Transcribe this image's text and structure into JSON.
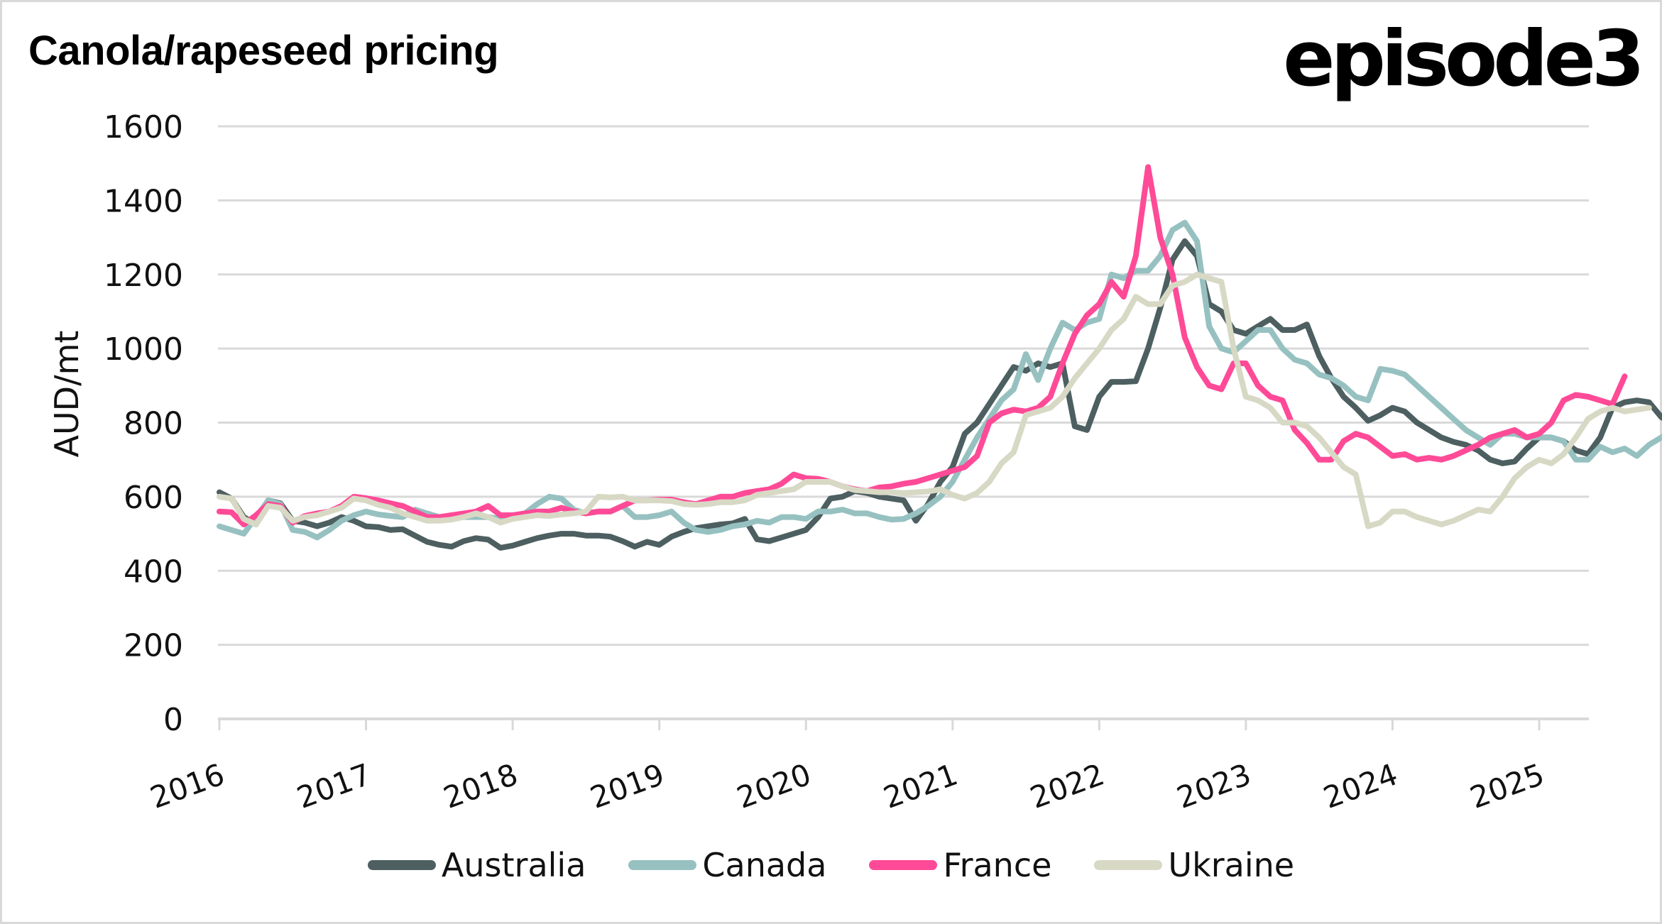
{
  "title": "Canola/rapeseed pricing",
  "brand": "episode3",
  "chart_data": {
    "type": "line",
    "title": "Canola/rapeseed pricing",
    "xlabel": "",
    "ylabel": "AUD/mt",
    "ylim": [
      0,
      1600
    ],
    "yticks": [
      0,
      200,
      400,
      600,
      800,
      1000,
      1200,
      1400,
      1600
    ],
    "ytick_labels": [
      "0",
      "200",
      "400",
      "600",
      "800",
      "1000",
      "1200",
      "1400",
      "1600"
    ],
    "xlim": [
      2016.0,
      2025.3
    ],
    "xticks": [
      2016,
      2017,
      2018,
      2019,
      2020,
      2021,
      2022,
      2023,
      2024,
      2025
    ],
    "xtick_labels": [
      "2016",
      "2017",
      "2018",
      "2019",
      "2020",
      "2021",
      "2022",
      "2023",
      "2024",
      "2025"
    ],
    "grid": true,
    "legend_position": "bottom",
    "x_start": 2016.0,
    "x_step_years": 0.08333,
    "series": [
      {
        "name": "Australia",
        "color": "#4d5f60",
        "values": [
          612,
          595,
          545,
          525,
          590,
          582,
          535,
          530,
          520,
          530,
          545,
          535,
          520,
          518,
          510,
          512,
          495,
          478,
          470,
          465,
          480,
          488,
          484,
          462,
          468,
          478,
          488,
          495,
          500,
          500,
          495,
          495,
          492,
          480,
          465,
          478,
          470,
          492,
          505,
          515,
          520,
          525,
          528,
          540,
          485,
          480,
          490,
          500,
          510,
          545,
          595,
          600,
          615,
          610,
          600,
          595,
          590,
          535,
          580,
          640,
          680,
          770,
          800,
          850,
          900,
          950,
          940,
          960,
          950,
          960,
          790,
          780,
          870,
          910,
          910,
          912,
          1000,
          1110,
          1240,
          1290,
          1250,
          1120,
          1100,
          1050,
          1040,
          1060,
          1080,
          1050,
          1050,
          1065,
          980,
          920,
          870,
          840,
          805,
          820,
          840,
          830,
          800,
          780,
          760,
          748,
          740,
          725,
          700,
          690,
          695,
          730,
          760,
          760,
          750,
          725,
          715,
          760,
          840,
          855,
          860,
          855,
          815,
          795,
          780
        ]
      },
      {
        "name": "Canada",
        "color": "#97c1c1",
        "values": [
          520,
          510,
          500,
          545,
          590,
          580,
          510,
          505,
          490,
          510,
          535,
          550,
          560,
          552,
          548,
          545,
          565,
          555,
          545,
          540,
          545,
          545,
          545,
          540,
          545,
          555,
          580,
          600,
          595,
          565,
          555,
          560,
          560,
          575,
          545,
          545,
          550,
          560,
          530,
          510,
          505,
          510,
          520,
          525,
          535,
          530,
          545,
          545,
          540,
          560,
          560,
          565,
          555,
          555,
          545,
          538,
          540,
          555,
          575,
          600,
          640,
          700,
          760,
          810,
          860,
          890,
          985,
          915,
          1000,
          1070,
          1050,
          1070,
          1080,
          1200,
          1190,
          1210,
          1210,
          1250,
          1320,
          1340,
          1290,
          1060,
          1000,
          990,
          1020,
          1050,
          1050,
          1000,
          970,
          960,
          930,
          920,
          900,
          870,
          860,
          945,
          940,
          930,
          900,
          870,
          840,
          810,
          780,
          760,
          740,
          770,
          770,
          760,
          760,
          760,
          750,
          700,
          700,
          735,
          720,
          730,
          710,
          740,
          760,
          780,
          725,
          810
        ]
      },
      {
        "name": "France",
        "color": "#ff4a97",
        "values": [
          560,
          558,
          525,
          550,
          580,
          575,
          530,
          548,
          555,
          560,
          575,
          600,
          596,
          590,
          582,
          575,
          560,
          545,
          545,
          550,
          555,
          560,
          575,
          550,
          550,
          555,
          560,
          560,
          570,
          560,
          555,
          560,
          560,
          575,
          590,
          590,
          592,
          592,
          585,
          580,
          590,
          600,
          600,
          610,
          615,
          620,
          635,
          660,
          650,
          648,
          640,
          628,
          620,
          615,
          625,
          628,
          635,
          640,
          650,
          660,
          670,
          680,
          710,
          800,
          825,
          835,
          830,
          840,
          870,
          960,
          1040,
          1090,
          1120,
          1180,
          1140,
          1250,
          1490,
          1300,
          1200,
          1030,
          950,
          900,
          890,
          960,
          960,
          900,
          870,
          860,
          780,
          745,
          700,
          700,
          750,
          770,
          760,
          735,
          710,
          715,
          700,
          705,
          700,
          710,
          725,
          740,
          760,
          770,
          780,
          760,
          770,
          800,
          860,
          875,
          870,
          860,
          850,
          925
        ]
      },
      {
        "name": "Ukraine",
        "color": "#d8d9c5",
        "values": [
          600,
          595,
          540,
          525,
          575,
          570,
          535,
          545,
          550,
          560,
          570,
          595,
          590,
          578,
          570,
          555,
          545,
          535,
          535,
          538,
          545,
          555,
          545,
          530,
          540,
          545,
          550,
          548,
          552,
          555,
          560,
          600,
          598,
          600,
          590,
          590,
          590,
          588,
          580,
          578,
          580,
          585,
          585,
          590,
          605,
          610,
          615,
          620,
          640,
          640,
          640,
          628,
          618,
          615,
          612,
          612,
          610,
          612,
          614,
          620,
          605,
          595,
          610,
          640,
          690,
          720,
          820,
          830,
          840,
          870,
          920,
          960,
          1000,
          1050,
          1080,
          1140,
          1120,
          1120,
          1170,
          1180,
          1200,
          1190,
          1180,
          1000,
          870,
          860,
          840,
          800,
          800,
          790,
          760,
          720,
          680,
          660,
          520,
          530,
          560,
          560,
          545,
          535,
          525,
          535,
          550,
          565,
          560,
          600,
          650,
          680,
          700,
          690,
          715,
          760,
          810,
          830,
          840,
          830,
          835,
          840
        ]
      }
    ]
  }
}
